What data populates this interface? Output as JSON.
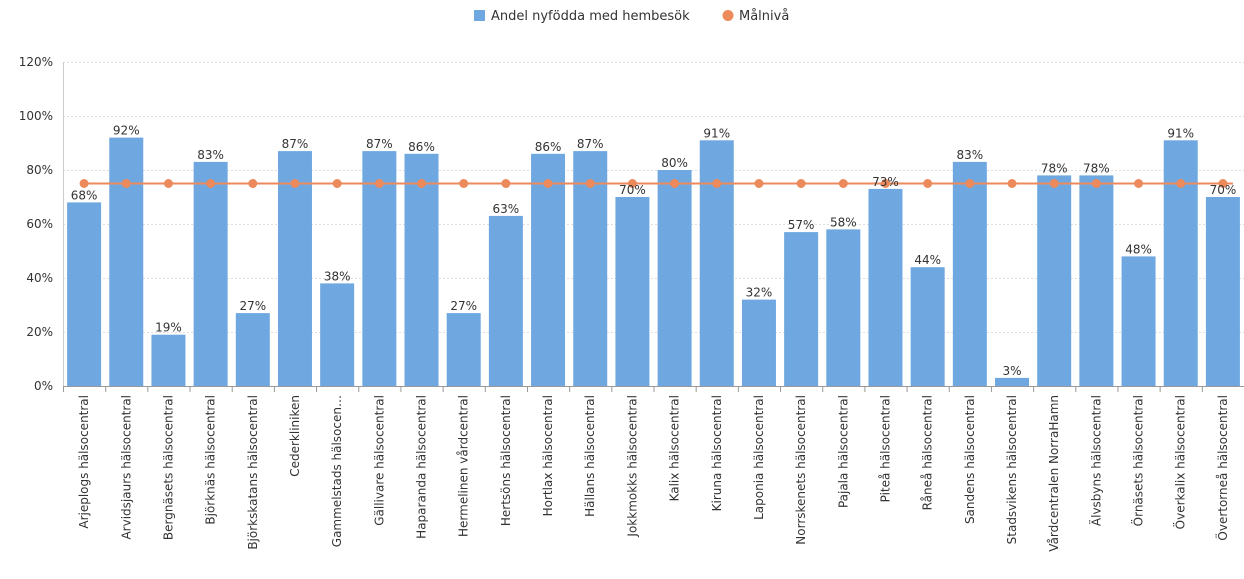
{
  "chart_data": {
    "type": "bar",
    "legend": {
      "position": "top-center",
      "items": [
        {
          "label": "Andel nyfödda med hembesök",
          "marker": "square",
          "color": "#6fa8e0"
        },
        {
          "label": "Målnivå",
          "marker": "circle",
          "color": "#ec8a5c"
        }
      ]
    },
    "ylim": [
      0,
      120
    ],
    "yticks": [
      0,
      20,
      40,
      60,
      80,
      100,
      120
    ],
    "ytick_labels": [
      "0%",
      "20%",
      "40%",
      "60%",
      "80%",
      "100%",
      "120%"
    ],
    "grid": true,
    "categories": [
      "Arjeplogs hälsocentral",
      "Arvidsjaurs hälsocentral",
      "Bergnäsets hälsocentral",
      "Björknäs hälsocentral",
      "Björkskatans hälsocentral",
      "Cederkliniken",
      "Gammelstads hälsocen…",
      "Gällivare hälsocentral",
      "Haparanda hälsocentral",
      "Hermelinen vårdcentral",
      "Hertsöns hälsocentral",
      "Hortlax hälsocentral",
      "Hällans hälsocentral",
      "Jokkmokks hälsocentral",
      "Kalix hälsocentral",
      "Kiruna hälsocentral",
      "Laponia hälsocentral",
      "Norrskenets hälsocentral",
      "Pajala hälsocentral",
      "Piteå hälsocentral",
      "Råneå hälsocentral",
      "Sandens hälsocentral",
      "Stadsvikens hälsocentral",
      "Vårdcentralen NorraHamn",
      "Älvsbyns hälsocentral",
      "Örnäsets hälsocentral",
      "Överkalix hälsocentral",
      "Övertorneå hälsocentral"
    ],
    "series": [
      {
        "name": "Andel nyfödda med hembesök",
        "type": "bar",
        "color": "#6fa8e0",
        "values": [
          68,
          92,
          19,
          83,
          27,
          87,
          38,
          87,
          86,
          27,
          63,
          86,
          87,
          70,
          80,
          91,
          32,
          57,
          58,
          73,
          44,
          83,
          3,
          78,
          78,
          48,
          91,
          70
        ],
        "labels": [
          "68%",
          "92%",
          "19%",
          "83%",
          "27%",
          "87%",
          "38%",
          "87%",
          "86%",
          "27%",
          "63%",
          "86%",
          "87%",
          "70%",
          "80%",
          "91%",
          "32%",
          "57%",
          "58%",
          "73%",
          "44%",
          "83%",
          "3%",
          "78%",
          "78%",
          "48%",
          "91%",
          "70%"
        ]
      },
      {
        "name": "Målnivå",
        "type": "line",
        "color": "#ec8a5c",
        "values": [
          75,
          75,
          75,
          75,
          75,
          75,
          75,
          75,
          75,
          75,
          75,
          75,
          75,
          75,
          75,
          75,
          75,
          75,
          75,
          75,
          75,
          75,
          75,
          75,
          75,
          75,
          75,
          75
        ]
      }
    ]
  }
}
